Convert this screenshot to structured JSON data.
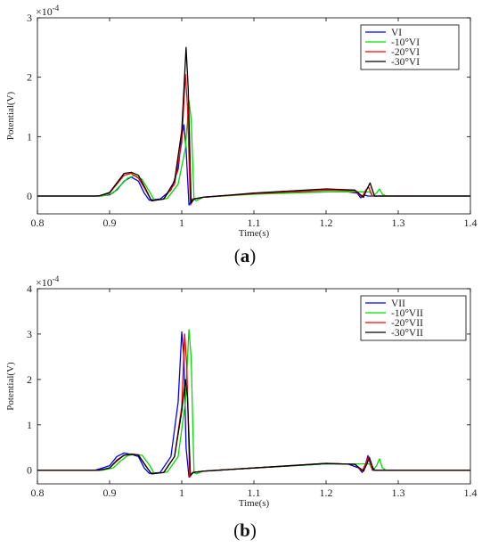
{
  "chart_data": [
    {
      "type": "line",
      "caption": "(a)",
      "caption_letter": "a",
      "xlabel": "Time(s)",
      "ylabel": "Potential(V)",
      "y_exponent_label": "×10",
      "y_exponent_power": "-4",
      "xlim": [
        0.8,
        1.4
      ],
      "ylim": [
        -0.3,
        3
      ],
      "x_ticks": [
        "0.8",
        "0.9",
        "1",
        "1.1",
        "1.2",
        "1.3",
        "1.4"
      ],
      "y_ticks": [
        "0",
        "1",
        "2",
        "3"
      ],
      "grid": false,
      "legend_position": "top-right",
      "series": [
        {
          "name": "VI",
          "color": "#0000ff",
          "x": [
            0.8,
            0.88,
            0.9,
            0.91,
            0.92,
            0.93,
            0.94,
            0.948,
            0.955,
            0.97,
            0.985,
            0.995,
            1.0,
            1.003,
            1.006,
            1.01,
            1.015,
            1.03,
            1.1,
            1.2,
            1.23,
            1.243,
            1.248,
            1.252,
            1.258,
            1.265,
            1.4
          ],
          "y": [
            0,
            0,
            0.02,
            0.1,
            0.25,
            0.32,
            0.25,
            0.05,
            -0.07,
            -0.05,
            0.1,
            0.45,
            1.0,
            1.2,
            0.8,
            -0.15,
            -0.05,
            -0.02,
            0.04,
            0.07,
            0.07,
            0.05,
            -0.03,
            0.02,
            0.0,
            0,
            0
          ]
        },
        {
          "name": "-10°VI",
          "color": "#00dd00",
          "x": [
            0.8,
            0.89,
            0.905,
            0.915,
            0.925,
            0.935,
            0.945,
            0.955,
            0.962,
            0.98,
            0.995,
            1.005,
            1.01,
            1.013,
            1.017,
            1.02,
            1.03,
            1.1,
            1.2,
            1.26,
            1.265,
            1.27,
            1.274,
            1.278,
            1.283,
            1.4
          ],
          "y": [
            0,
            0,
            0.05,
            0.18,
            0.3,
            0.35,
            0.28,
            0.08,
            -0.07,
            -0.04,
            0.2,
            0.8,
            1.6,
            1.3,
            -0.05,
            -0.08,
            -0.02,
            0.03,
            0.07,
            0.07,
            0.0,
            0.05,
            0.12,
            0.03,
            0,
            0
          ]
        },
        {
          "name": "-20°VI",
          "color": "#ff0000",
          "x": [
            0.8,
            0.885,
            0.9,
            0.91,
            0.92,
            0.93,
            0.94,
            0.95,
            0.958,
            0.975,
            0.99,
            1.0,
            1.005,
            1.008,
            1.012,
            1.016,
            1.03,
            1.1,
            1.2,
            1.24,
            1.25,
            1.255,
            1.259,
            1.264,
            1.4
          ],
          "y": [
            0,
            0,
            0.05,
            0.2,
            0.35,
            0.38,
            0.3,
            0.1,
            -0.08,
            -0.05,
            0.2,
            0.9,
            2.05,
            1.5,
            -0.15,
            -0.05,
            -0.02,
            0.04,
            0.1,
            0.09,
            -0.02,
            0.1,
            0.15,
            0.0,
            0
          ]
        },
        {
          "name": "-30°VI",
          "color": "#000000",
          "x": [
            0.8,
            0.885,
            0.9,
            0.91,
            0.92,
            0.93,
            0.94,
            0.95,
            0.958,
            0.975,
            0.99,
            1.0,
            1.006,
            1.009,
            1.013,
            1.017,
            1.03,
            1.1,
            1.2,
            1.24,
            1.252,
            1.256,
            1.261,
            1.267,
            1.4
          ],
          "y": [
            0,
            0,
            0.06,
            0.22,
            0.38,
            0.4,
            0.35,
            0.12,
            -0.08,
            -0.05,
            0.25,
            1.1,
            2.5,
            1.8,
            -0.12,
            -0.05,
            -0.02,
            0.05,
            0.12,
            0.1,
            -0.02,
            0.1,
            0.22,
            0.0,
            0
          ]
        }
      ]
    },
    {
      "type": "line",
      "caption": "(b)",
      "caption_letter": "b",
      "xlabel": "Time(s)",
      "ylabel": "Potential(V)",
      "y_exponent_label": "×10",
      "y_exponent_power": "-4",
      "xlim": [
        0.8,
        1.4
      ],
      "ylim": [
        -0.3,
        4
      ],
      "x_ticks": [
        "0.8",
        "0.9",
        "1",
        "1.1",
        "1.2",
        "1.3",
        "1.4"
      ],
      "y_ticks": [
        "0",
        "1",
        "2",
        "3",
        "4"
      ],
      "grid": false,
      "legend_position": "top-right",
      "series": [
        {
          "name": "VII",
          "color": "#0000ff",
          "x": [
            0.8,
            0.88,
            0.9,
            0.91,
            0.92,
            0.93,
            0.94,
            0.948,
            0.955,
            0.97,
            0.985,
            0.995,
            1.0,
            1.003,
            1.006,
            1.01,
            1.015,
            1.03,
            1.1,
            1.2,
            1.23,
            1.245,
            1.25,
            1.255,
            1.258,
            1.262,
            1.268,
            1.4
          ],
          "y": [
            0,
            0,
            0.1,
            0.3,
            0.38,
            0.35,
            0.3,
            0.05,
            -0.07,
            -0.05,
            0.3,
            1.5,
            3.05,
            2.5,
            0.5,
            -0.15,
            -0.05,
            -0.02,
            0.05,
            0.14,
            0.14,
            0.05,
            -0.05,
            0.15,
            0.32,
            0.1,
            0,
            0
          ]
        },
        {
          "name": "-10°VII",
          "color": "#00dd00",
          "x": [
            0.8,
            0.89,
            0.905,
            0.915,
            0.925,
            0.935,
            0.945,
            0.955,
            0.962,
            0.98,
            0.995,
            1.005,
            1.01,
            1.013,
            1.017,
            1.02,
            1.03,
            1.1,
            1.2,
            1.26,
            1.265,
            1.27,
            1.274,
            1.278,
            1.283,
            1.4
          ],
          "y": [
            0,
            0,
            0.05,
            0.2,
            0.32,
            0.35,
            0.33,
            0.12,
            -0.07,
            -0.04,
            0.3,
            1.5,
            3.1,
            2.5,
            -0.05,
            -0.08,
            -0.02,
            0.05,
            0.14,
            0.14,
            0.0,
            0.1,
            0.25,
            0.05,
            0,
            0
          ]
        },
        {
          "name": "-20°VII",
          "color": "#ff0000",
          "x": [
            0.8,
            0.885,
            0.9,
            0.91,
            0.92,
            0.93,
            0.94,
            0.95,
            0.958,
            0.975,
            0.99,
            1.0,
            1.004,
            1.007,
            1.011,
            1.015,
            1.03,
            1.1,
            1.2,
            1.24,
            1.25,
            1.255,
            1.259,
            1.264,
            1.4
          ],
          "y": [
            0,
            0,
            0.05,
            0.2,
            0.33,
            0.36,
            0.34,
            0.1,
            -0.08,
            -0.05,
            0.3,
            1.4,
            3.0,
            2.3,
            -0.15,
            -0.05,
            -0.02,
            0.05,
            0.15,
            0.13,
            -0.02,
            0.15,
            0.3,
            0.0,
            0
          ]
        },
        {
          "name": "-30°VII",
          "color": "#000000",
          "x": [
            0.8,
            0.885,
            0.9,
            0.91,
            0.92,
            0.93,
            0.94,
            0.95,
            0.958,
            0.975,
            0.99,
            1.0,
            1.005,
            1.008,
            1.012,
            1.016,
            1.03,
            1.1,
            1.2,
            1.24,
            1.252,
            1.256,
            1.26,
            1.266,
            1.4
          ],
          "y": [
            0,
            0,
            0.05,
            0.22,
            0.33,
            0.35,
            0.33,
            0.1,
            -0.08,
            -0.05,
            0.3,
            1.3,
            2.0,
            1.6,
            -0.12,
            -0.05,
            -0.02,
            0.05,
            0.15,
            0.13,
            -0.02,
            0.12,
            0.28,
            0.0,
            0
          ]
        }
      ]
    }
  ]
}
